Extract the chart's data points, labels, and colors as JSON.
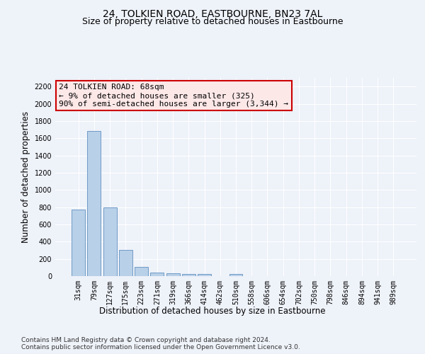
{
  "title": "24, TOLKIEN ROAD, EASTBOURNE, BN23 7AL",
  "subtitle": "Size of property relative to detached houses in Eastbourne",
  "xlabel": "Distribution of detached houses by size in Eastbourne",
  "ylabel": "Number of detached properties",
  "categories": [
    "31sqm",
    "79sqm",
    "127sqm",
    "175sqm",
    "223sqm",
    "271sqm",
    "319sqm",
    "366sqm",
    "414sqm",
    "462sqm",
    "510sqm",
    "558sqm",
    "606sqm",
    "654sqm",
    "702sqm",
    "750sqm",
    "798sqm",
    "846sqm",
    "894sqm",
    "941sqm",
    "989sqm"
  ],
  "values": [
    770,
    1680,
    795,
    300,
    110,
    45,
    32,
    28,
    23,
    0,
    23,
    0,
    0,
    0,
    0,
    0,
    0,
    0,
    0,
    0,
    0
  ],
  "bar_color": "#b8d0e8",
  "bar_edge_color": "#6090c0",
  "annotation_box_facecolor": "#fde8e8",
  "annotation_border_color": "#cc0000",
  "annotation_text_line1": "24 TOLKIEN ROAD: 68sqm",
  "annotation_text_line2": "← 9% of detached houses are smaller (325)",
  "annotation_text_line3": "90% of semi-detached houses are larger (3,344) →",
  "ylim": [
    0,
    2300
  ],
  "yticks": [
    0,
    200,
    400,
    600,
    800,
    1000,
    1200,
    1400,
    1600,
    1800,
    2000,
    2200
  ],
  "footer_line1": "Contains HM Land Registry data © Crown copyright and database right 2024.",
  "footer_line2": "Contains public sector information licensed under the Open Government Licence v3.0.",
  "background_color": "#eef2f9",
  "grid_color": "#ffffff",
  "title_fontsize": 10,
  "subtitle_fontsize": 9,
  "annotation_fontsize": 8,
  "tick_fontsize": 7,
  "ylabel_fontsize": 8.5,
  "xlabel_fontsize": 8.5,
  "footer_fontsize": 6.5
}
